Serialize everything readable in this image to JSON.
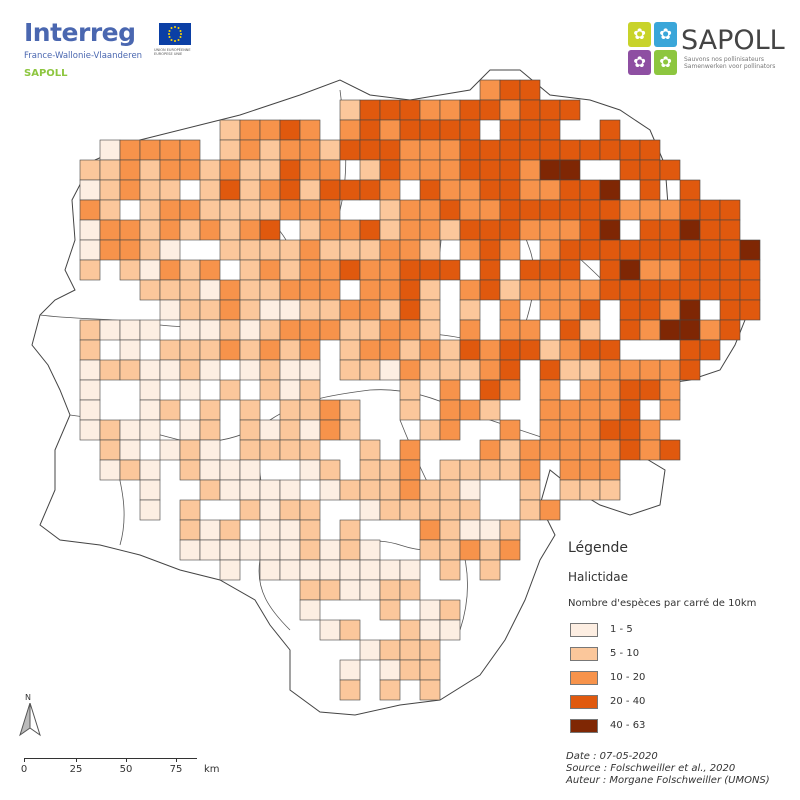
{
  "header": {
    "interreg_name": "Interreg",
    "interreg_region": "France-Wallonie-Vlaanderen",
    "interreg_project": "SAPOLL",
    "eu_caption": "UNION EUROPÉENNE EUROPESE UNIE",
    "sapoll_name": "SAPOLL",
    "sapoll_tagline_fr": "Sauvons nos pollinisateurs",
    "sapoll_tagline_nl": "Samenwerken voor pollinators",
    "colors": {
      "interreg_blue": "#4a67b0",
      "sapoll_green": "#8dc63f"
    }
  },
  "legend": {
    "title": "Légende",
    "family": "Halictidae",
    "subtitle": "Nombre d'espèces par carré de 10km",
    "classes": [
      {
        "label": "1 - 5",
        "color": "#fdeee2"
      },
      {
        "label": "5 - 10",
        "color": "#fbc79b"
      },
      {
        "label": "10 - 20",
        "color": "#f7934b"
      },
      {
        "label": "20 - 40",
        "color": "#e0590e"
      },
      {
        "label": "40 - 63",
        "color": "#7f2704"
      }
    ]
  },
  "north_arrow": {
    "label": "N"
  },
  "scale_bar": {
    "labels": [
      "0",
      "25",
      "50",
      "75"
    ],
    "unit": "km"
  },
  "credits": {
    "date": "Date : 07-05-2020",
    "source": "Source : Folschweiller et al., 2020",
    "author": "Auteur : Morgane Folschweiller (UMONS)"
  }
}
